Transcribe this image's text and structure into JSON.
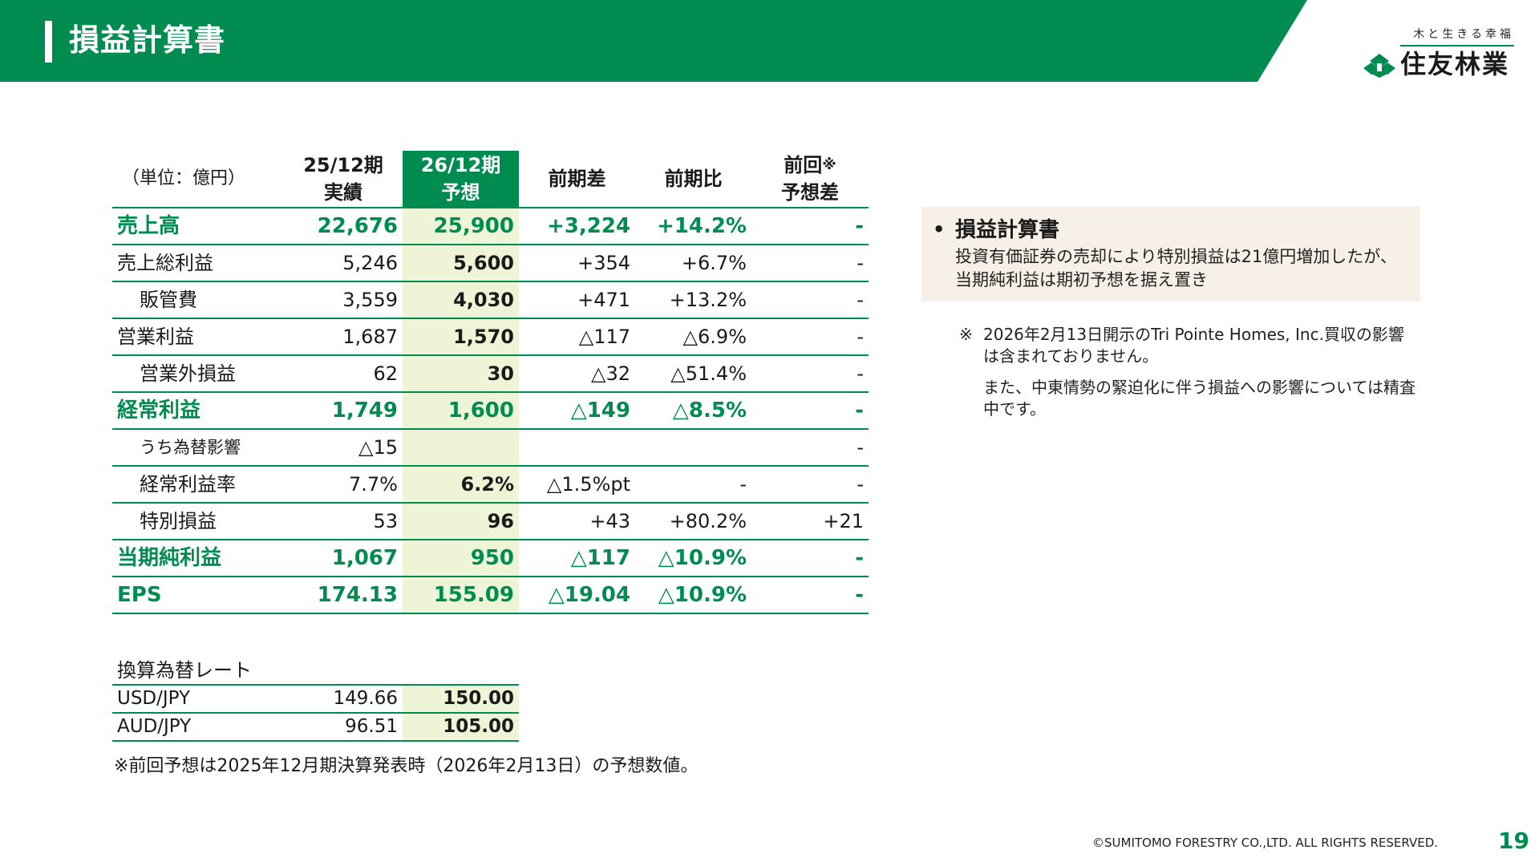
{
  "header": {
    "title": "損益計算書",
    "logo_slogan": "木と生きる幸福",
    "logo_name": "住友林業",
    "accent_color": "#008c50"
  },
  "table": {
    "columns": {
      "unit": "（単位：億円）",
      "prev_line1": "25/12期",
      "prev_line2": "実績",
      "fc_line1": "26/12期",
      "fc_line2": "予想",
      "yoy_diff": "前期差",
      "yoy_ratio": "前期比",
      "vs_prev_line1": "前回",
      "vs_prev_mark": "※",
      "vs_prev_line2": "予想差"
    },
    "rows": [
      {
        "label": "売上高",
        "prev": "22,676",
        "fc": "25,900",
        "diff": "+3,224",
        "ratio": "+14.2%",
        "vs": "-"
      },
      {
        "label": "売上総利益",
        "prev": "5,246",
        "fc": "5,600",
        "diff": "+354",
        "ratio": "+6.7%",
        "vs": "-"
      },
      {
        "label": "販管費",
        "prev": "3,559",
        "fc": "4,030",
        "diff": "+471",
        "ratio": "+13.2%",
        "vs": "-"
      },
      {
        "label": "営業利益",
        "prev": "1,687",
        "fc": "1,570",
        "diff": "△117",
        "ratio": "△6.9%",
        "vs": "-"
      },
      {
        "label": "営業外損益",
        "prev": "62",
        "fc": "30",
        "diff": "△32",
        "ratio": "△51.4%",
        "vs": "-"
      },
      {
        "label": "経常利益",
        "prev": "1,749",
        "fc": "1,600",
        "diff": "△149",
        "ratio": "△8.5%",
        "vs": "-"
      },
      {
        "label": "うち為替影響",
        "prev": "△15",
        "fc": "",
        "diff": "",
        "ratio": "",
        "vs": "-"
      },
      {
        "label": "経常利益率",
        "prev": "7.7%",
        "fc": "6.2%",
        "diff": "△1.5%pt",
        "ratio": "-",
        "vs": "-"
      },
      {
        "label": "特別損益",
        "prev": "53",
        "fc": "96",
        "diff": "+43",
        "ratio": "+80.2%",
        "vs": "+21"
      },
      {
        "label": "当期純利益",
        "prev": "1,067",
        "fc": "950",
        "diff": "△117",
        "ratio": "△10.9%",
        "vs": "-"
      },
      {
        "label": "EPS",
        "prev": "174.13",
        "fc": "155.09",
        "diff": "△19.04",
        "ratio": "△10.9%",
        "vs": "-"
      }
    ]
  },
  "fx": {
    "caption": "換算為替レート",
    "rows": [
      {
        "pair": "USD/JPY",
        "prev": "149.66",
        "fc": "150.00"
      },
      {
        "pair": "AUD/JPY",
        "prev": "96.51",
        "fc": "105.00"
      }
    ]
  },
  "bottom_note": "※前回予想は2025年12月期決算発表時（2026年2月13日）の予想数値。",
  "summary": {
    "bullet": "•",
    "heading": "損益計算書",
    "text": "投資有価証券の売却により特別損益は21億円増加したが、当期純利益は期初予想を据え置き"
  },
  "footnotes": {
    "mark": "※",
    "p1": "2026年2月13日開示のTri Pointe Homes, Inc.買収の影響は含まれておりません。",
    "p2": "また、中東情勢の緊迫化に伴う損益への影響については精査中です。"
  },
  "footer": {
    "copyright": "©SUMITOMO FORESTRY CO.,LTD. ALL RIGHTS RESERVED.",
    "page_number": "19"
  }
}
